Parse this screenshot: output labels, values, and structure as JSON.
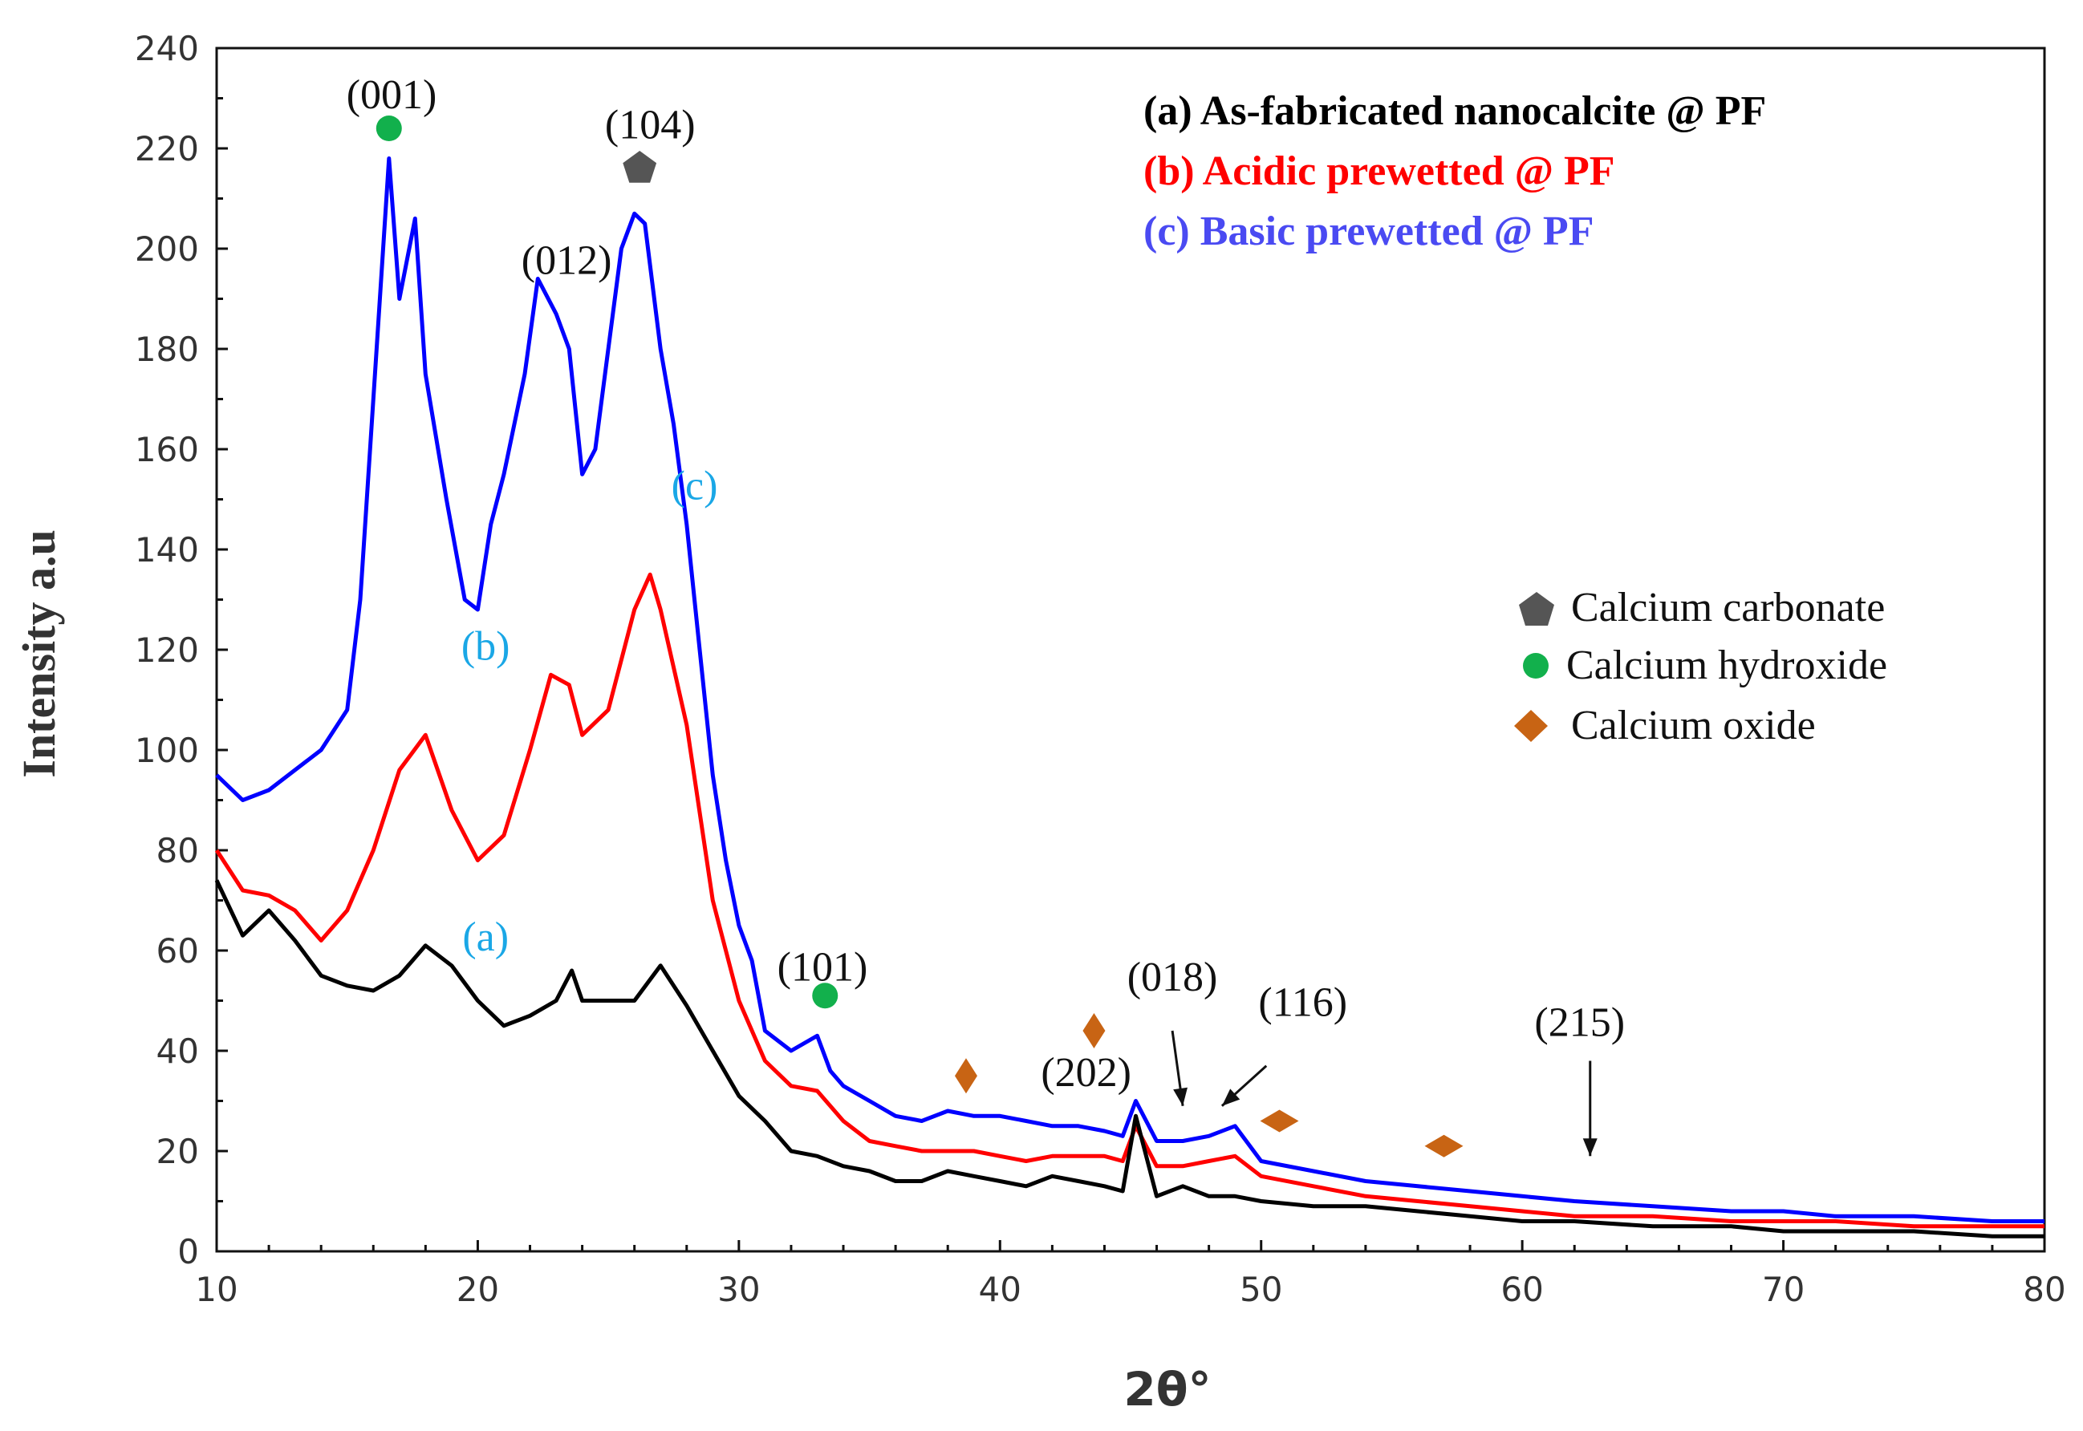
{
  "chart_data": {
    "type": "line",
    "title": "",
    "xlabel": "2θ°",
    "ylabel": "Intensity a.u",
    "xlim": [
      10,
      80
    ],
    "ylim": [
      0,
      240
    ],
    "xticks": [
      10,
      20,
      30,
      40,
      50,
      60,
      70,
      80
    ],
    "yticks": [
      0,
      20,
      40,
      60,
      80,
      100,
      120,
      140,
      160,
      180,
      200,
      220,
      240
    ],
    "series": [
      {
        "name": "(a) As-fabricated nanocalcite @ PF",
        "curve_label": "(a)",
        "color": "#000000",
        "x": [
          10,
          11,
          12,
          13,
          14,
          15,
          16,
          17,
          18,
          19,
          20,
          21,
          22,
          23,
          23.6,
          24,
          25,
          26,
          27,
          28,
          29,
          30,
          31,
          32,
          33,
          34,
          35,
          36,
          37,
          38,
          39,
          40,
          41,
          42,
          43,
          44,
          44.7,
          45.2,
          46,
          47,
          48,
          49,
          50,
          52,
          54,
          56,
          58,
          60,
          62,
          65,
          68,
          70,
          72,
          75,
          78,
          80
        ],
        "y": [
          74,
          63,
          68,
          62,
          55,
          53,
          52,
          55,
          61,
          57,
          50,
          45,
          47,
          50,
          56,
          50,
          50,
          50,
          57,
          49,
          40,
          31,
          26,
          20,
          19,
          17,
          16,
          14,
          14,
          16,
          15,
          14,
          13,
          15,
          14,
          13,
          12,
          27,
          11,
          13,
          11,
          11,
          10,
          9,
          9,
          8,
          7,
          6,
          6,
          5,
          5,
          4,
          4,
          4,
          3,
          3
        ]
      },
      {
        "name": "(b) Acidic prewetted @ PF",
        "curve_label": "(b)",
        "color": "#ff0000",
        "x": [
          10,
          11,
          12,
          13,
          14,
          15,
          16,
          17,
          18,
          19,
          20,
          21,
          22,
          22.8,
          23.5,
          24,
          25,
          26,
          26.6,
          27,
          28,
          29,
          29.5,
          30,
          31,
          32,
          33,
          34,
          35,
          36,
          37,
          38,
          39,
          40,
          41,
          42,
          43,
          44,
          44.7,
          45.2,
          46,
          47,
          48,
          49,
          50,
          52,
          54,
          56,
          58,
          60,
          62,
          65,
          68,
          70,
          72,
          75,
          78,
          80
        ],
        "y": [
          80,
          72,
          71,
          68,
          62,
          68,
          80,
          96,
          103,
          88,
          78,
          83,
          100,
          115,
          113,
          103,
          108,
          128,
          135,
          128,
          105,
          70,
          60,
          50,
          38,
          33,
          32,
          26,
          22,
          21,
          20,
          20,
          20,
          19,
          18,
          19,
          19,
          19,
          18,
          25,
          17,
          17,
          18,
          19,
          15,
          13,
          11,
          10,
          9,
          8,
          7,
          7,
          6,
          6,
          6,
          5,
          5,
          5
        ]
      },
      {
        "name": "(c) Basic prewetted @ PF",
        "curve_label": "(c)",
        "color": "#0000ff",
        "x": [
          10,
          11,
          12,
          13,
          14,
          15,
          15.5,
          16,
          16.6,
          17,
          17.6,
          18,
          18.8,
          19.5,
          20,
          20.5,
          21,
          21.8,
          22.3,
          23,
          23.5,
          24,
          24.5,
          25,
          25.5,
          26,
          26.4,
          27,
          27.5,
          28,
          28.5,
          29,
          29.5,
          30,
          30.5,
          31,
          32,
          33,
          33.5,
          34,
          35,
          36,
          37,
          38,
          39,
          40,
          41,
          42,
          43,
          44,
          44.7,
          45.2,
          46,
          47,
          48,
          49,
          50,
          52,
          54,
          56,
          58,
          60,
          62,
          65,
          68,
          70,
          72,
          75,
          78,
          80
        ],
        "y": [
          95,
          90,
          92,
          96,
          100,
          108,
          130,
          170,
          218,
          190,
          206,
          175,
          150,
          130,
          128,
          145,
          155,
          175,
          194,
          187,
          180,
          155,
          160,
          180,
          200,
          207,
          205,
          180,
          165,
          145,
          120,
          95,
          78,
          65,
          58,
          44,
          40,
          43,
          36,
          33,
          30,
          27,
          26,
          28,
          27,
          27,
          26,
          25,
          25,
          24,
          23,
          30,
          22,
          22,
          23,
          25,
          18,
          16,
          14,
          13,
          12,
          11,
          10,
          9,
          8,
          8,
          7,
          7,
          6,
          6
        ]
      }
    ],
    "annotations": [
      {
        "text": "(001)",
        "x": 16.7,
        "y": 228,
        "color": "#111111"
      },
      {
        "text": "(104)",
        "x": 26.6,
        "y": 222,
        "color": "#111111"
      },
      {
        "text": "(012)",
        "x": 23.4,
        "y": 195,
        "color": "#111111"
      },
      {
        "text": "(c)",
        "x": 28.3,
        "y": 150,
        "color": "#1aa7e6"
      },
      {
        "text": "(b)",
        "x": 20.3,
        "y": 118,
        "color": "#1aa7e6"
      },
      {
        "text": "(a)",
        "x": 20.3,
        "y": 60,
        "color": "#1aa7e6"
      },
      {
        "text": "(101)",
        "x": 33.2,
        "y": 54,
        "color": "#111111"
      },
      {
        "text": "(018)",
        "x": 46.6,
        "y": 52,
        "color": "#111111"
      },
      {
        "text": "(116)",
        "x": 51.6,
        "y": 47,
        "color": "#111111"
      },
      {
        "text": "(202)",
        "x": 43.3,
        "y": 33,
        "color": "#111111"
      },
      {
        "text": "(215)",
        "x": 62.2,
        "y": 43,
        "color": "#111111"
      }
    ],
    "arrows": [
      {
        "from": [
          46.6,
          44
        ],
        "to": [
          47.0,
          29
        ]
      },
      {
        "from": [
          50.2,
          37
        ],
        "to": [
          48.5,
          29
        ]
      },
      {
        "from": [
          62.6,
          38
        ],
        "to": [
          62.6,
          19
        ]
      }
    ],
    "markers": [
      {
        "shape": "circle",
        "phase": "Calcium hydroxide",
        "x": 16.6,
        "y": 224
      },
      {
        "shape": "pentagon",
        "phase": "Calcium carbonate",
        "x": 26.2,
        "y": 216
      },
      {
        "shape": "circle",
        "phase": "Calcium hydroxide",
        "x": 33.3,
        "y": 51
      },
      {
        "shape": "diamond",
        "phase": "Calcium oxide",
        "x": 38.7,
        "y": 35
      },
      {
        "shape": "diamond",
        "phase": "Calcium oxide",
        "x": 43.6,
        "y": 44
      },
      {
        "shape": "diamond",
        "phase": "Calcium oxide",
        "x": 50.7,
        "y": 26
      },
      {
        "shape": "diamond",
        "phase": "Calcium oxide",
        "x": 57.0,
        "y": 21
      }
    ],
    "legend": {
      "placement": "top-right",
      "entries": [
        {
          "label": "(a) As-fabricated nanocalcite @ PF",
          "color": "#000000"
        },
        {
          "label": "(b) Acidic prewetted @ PF",
          "color": "#ff0000"
        },
        {
          "label": "(c) Basic prewetted @ PF",
          "color": "#4a4af2"
        }
      ]
    },
    "marker_legend": {
      "placement": "right",
      "entries": [
        {
          "label": "Calcium carbonate",
          "shape": "pentagon",
          "color": "#555555"
        },
        {
          "label": "Calcium hydroxide",
          "shape": "circle",
          "color": "#12b04c"
        },
        {
          "label": "Calcium oxide",
          "shape": "diamond",
          "color": "#c86414"
        }
      ]
    }
  }
}
